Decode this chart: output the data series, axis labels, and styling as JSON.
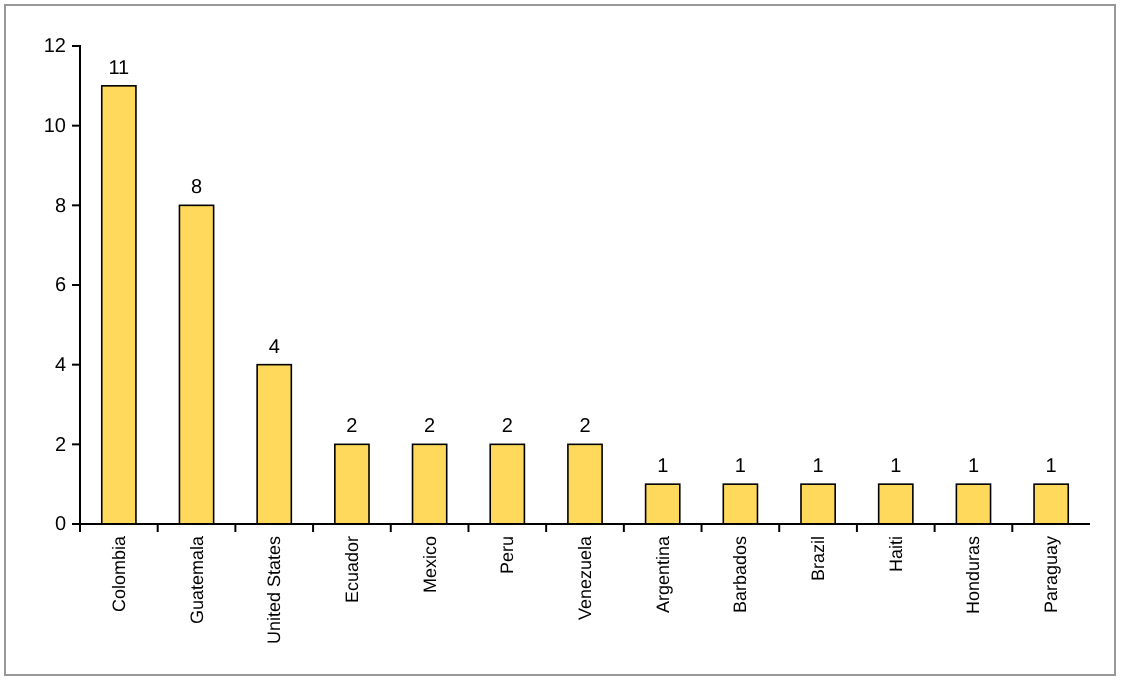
{
  "chart_data": {
    "type": "bar",
    "categories": [
      "Colombia",
      "Guatemala",
      "United States",
      "Ecuador",
      "Mexico",
      "Peru",
      "Venezuela",
      "Argentina",
      "Barbados",
      "Brazil",
      "Haiti",
      "Honduras",
      "Paraguay"
    ],
    "values": [
      11,
      8,
      4,
      2,
      2,
      2,
      2,
      1,
      1,
      1,
      1,
      1,
      1
    ],
    "color": "#ffd95c",
    "ylim": [
      0,
      12
    ],
    "yticks": [
      0,
      2,
      4,
      6,
      8,
      10,
      12
    ],
    "grid": false,
    "data_labels": true
  }
}
